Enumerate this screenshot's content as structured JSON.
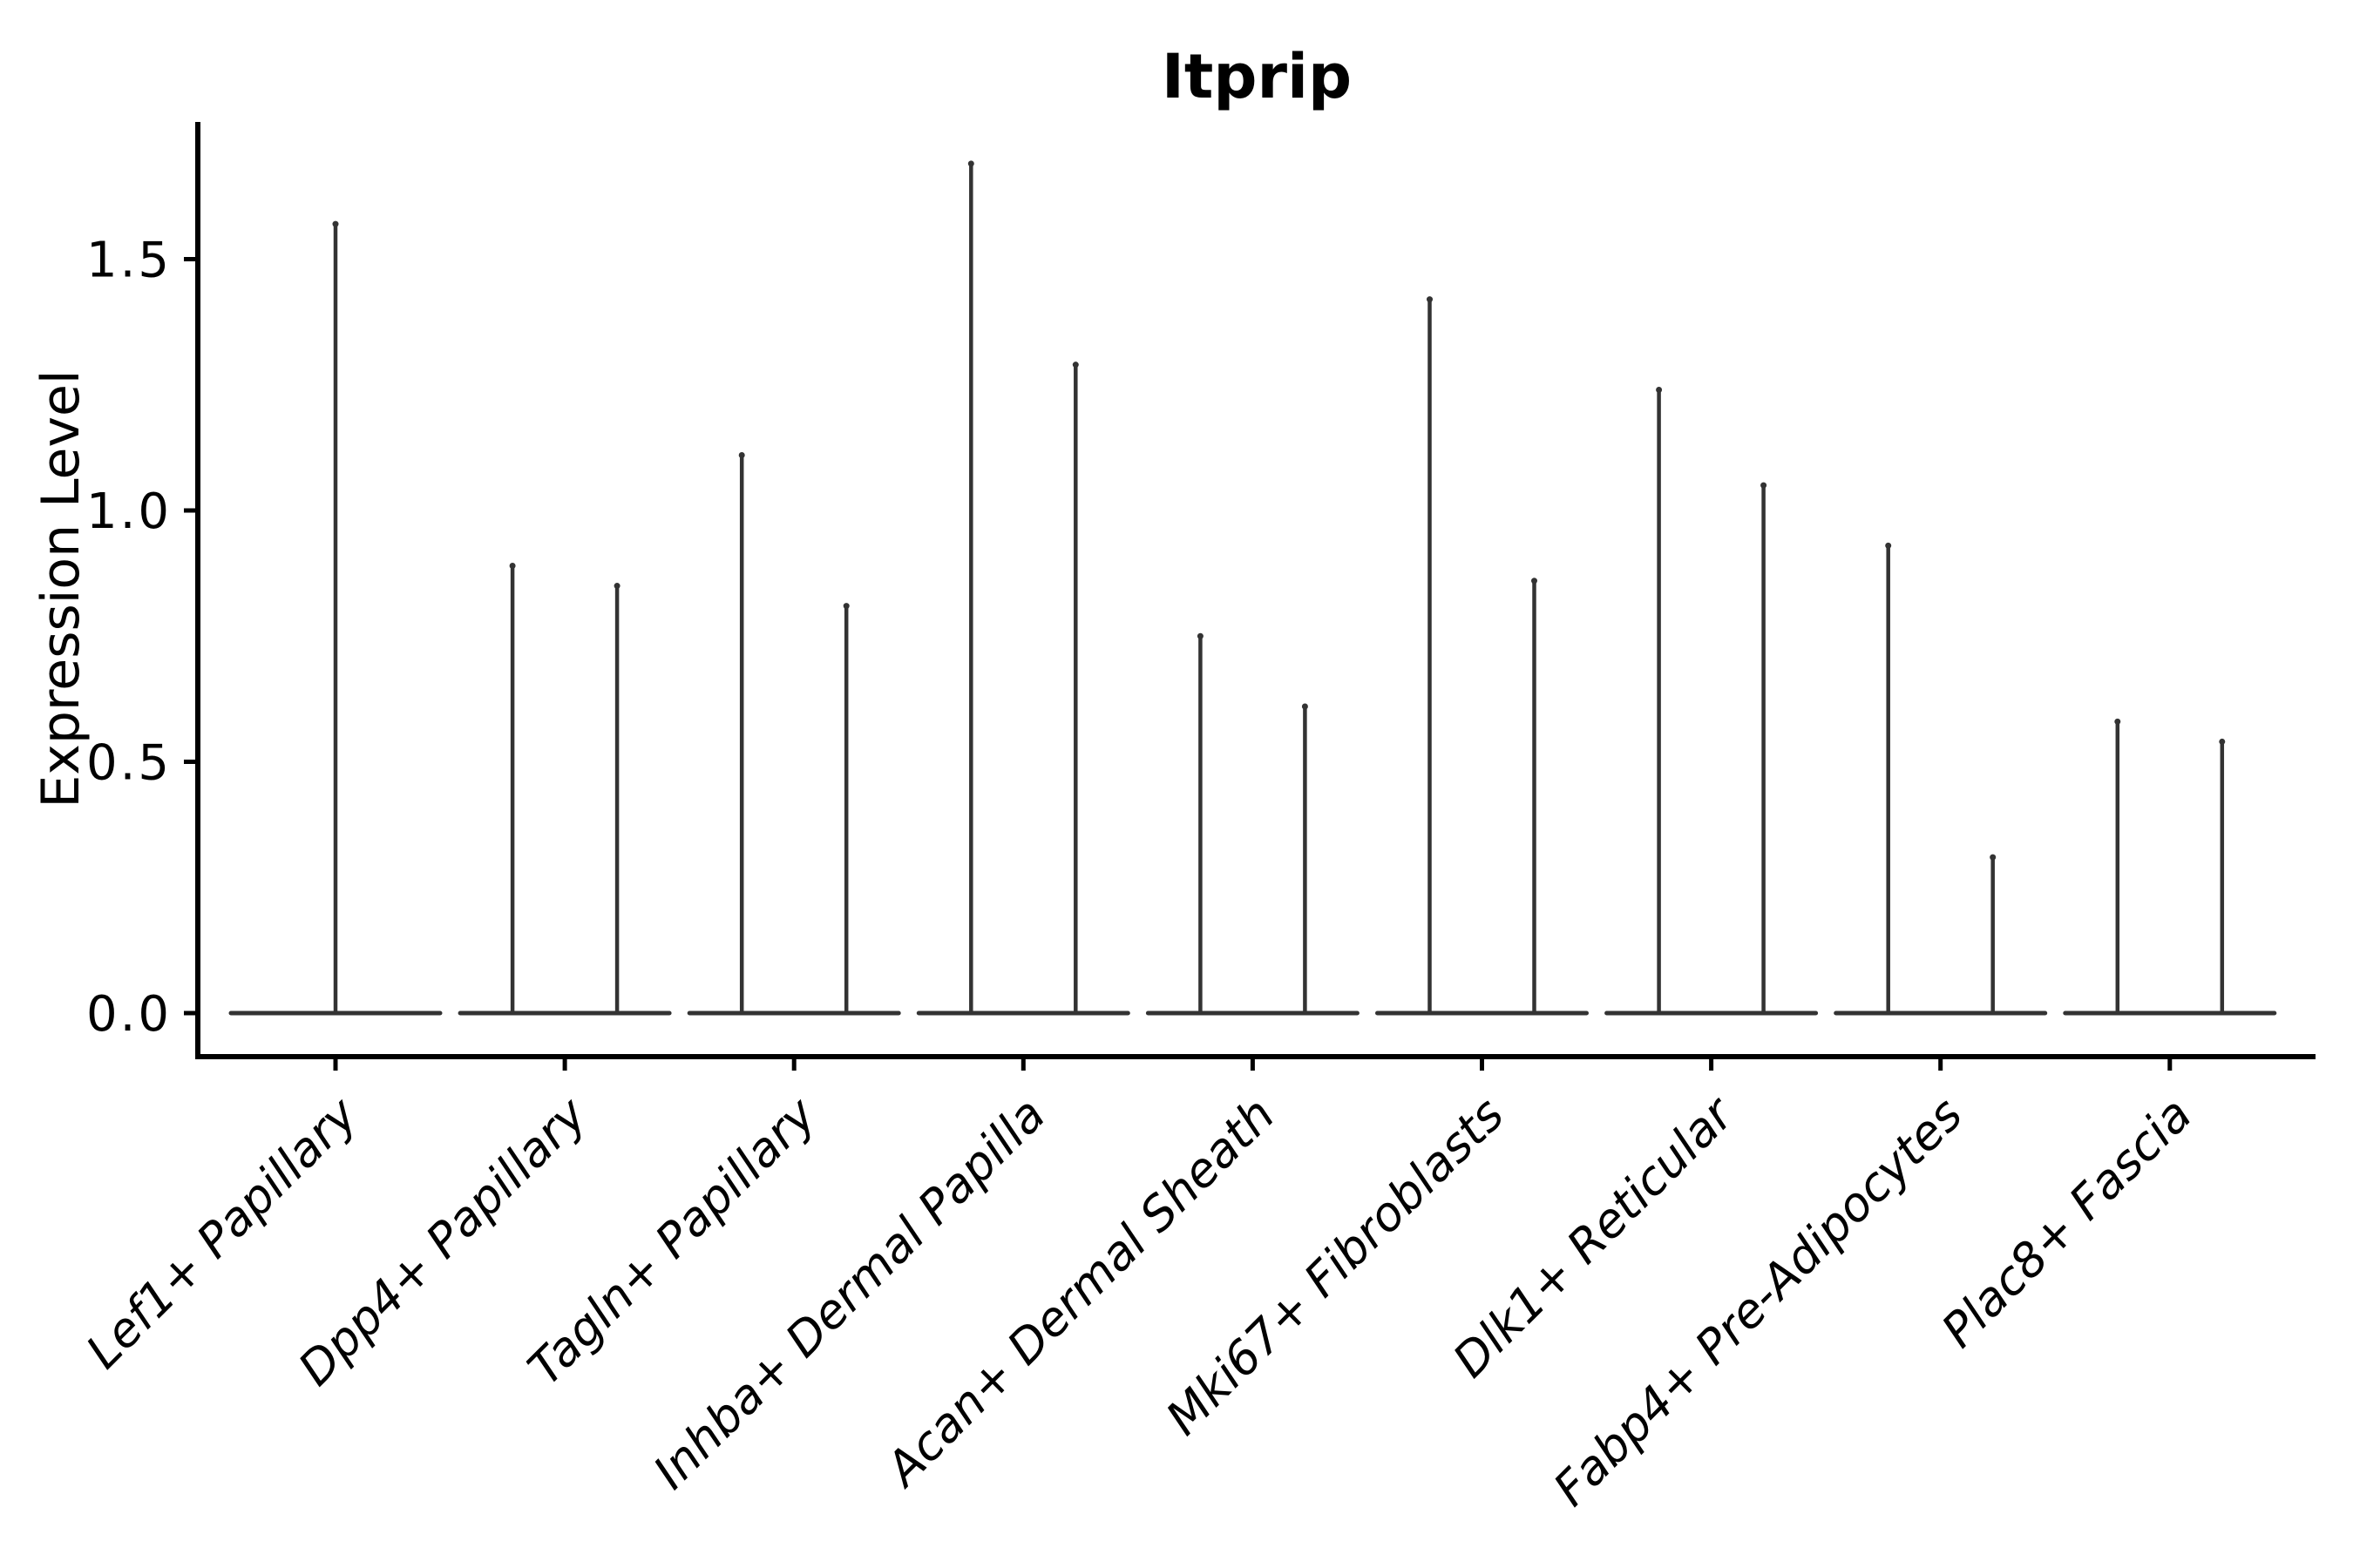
{
  "chart_data": {
    "type": "violin",
    "title": "Itprip",
    "ylabel": "Expression Level",
    "xlabel": "",
    "ylim": [
      0.0,
      1.77
    ],
    "grid": false,
    "legend": "none",
    "ytick_labels": [
      "0.0",
      "0.5",
      "1.0",
      "1.5"
    ],
    "ytick_values": [
      0.0,
      0.5,
      1.0,
      1.5
    ],
    "categories": [
      {
        "label": "Lef1+ Papillary",
        "violin_max_values": [
          1.57
        ]
      },
      {
        "label": "Dpp4+ Papillary",
        "violin_max_values": [
          0.89,
          0.85
        ]
      },
      {
        "label": "Tagln+ Papillary",
        "violin_max_values": [
          1.11,
          0.81
        ]
      },
      {
        "label": "Inhba+ Dermal Papilla",
        "violin_max_values": [
          1.69,
          1.29
        ]
      },
      {
        "label": "Acan+ Dermal Sheath",
        "violin_max_values": [
          0.75,
          0.61
        ]
      },
      {
        "label": "Mki67+ Fibroblasts",
        "violin_max_values": [
          1.42,
          0.86
        ]
      },
      {
        "label": "Dlk1+ Reticular",
        "violin_max_values": [
          1.24,
          1.05
        ]
      },
      {
        "label": "Fabp4+ Pre-Adipocytes",
        "violin_max_values": [
          0.93,
          0.31
        ]
      },
      {
        "label": "Plac8+ Fascia",
        "violin_max_values": [
          0.58,
          0.54
        ]
      }
    ],
    "violin_shape_note": "each violin is a thin vertical spike rising from a flat horizontal base at expression 0",
    "colors": {
      "violin": "#333333",
      "axis": "#000000",
      "background": "#ffffff"
    }
  }
}
